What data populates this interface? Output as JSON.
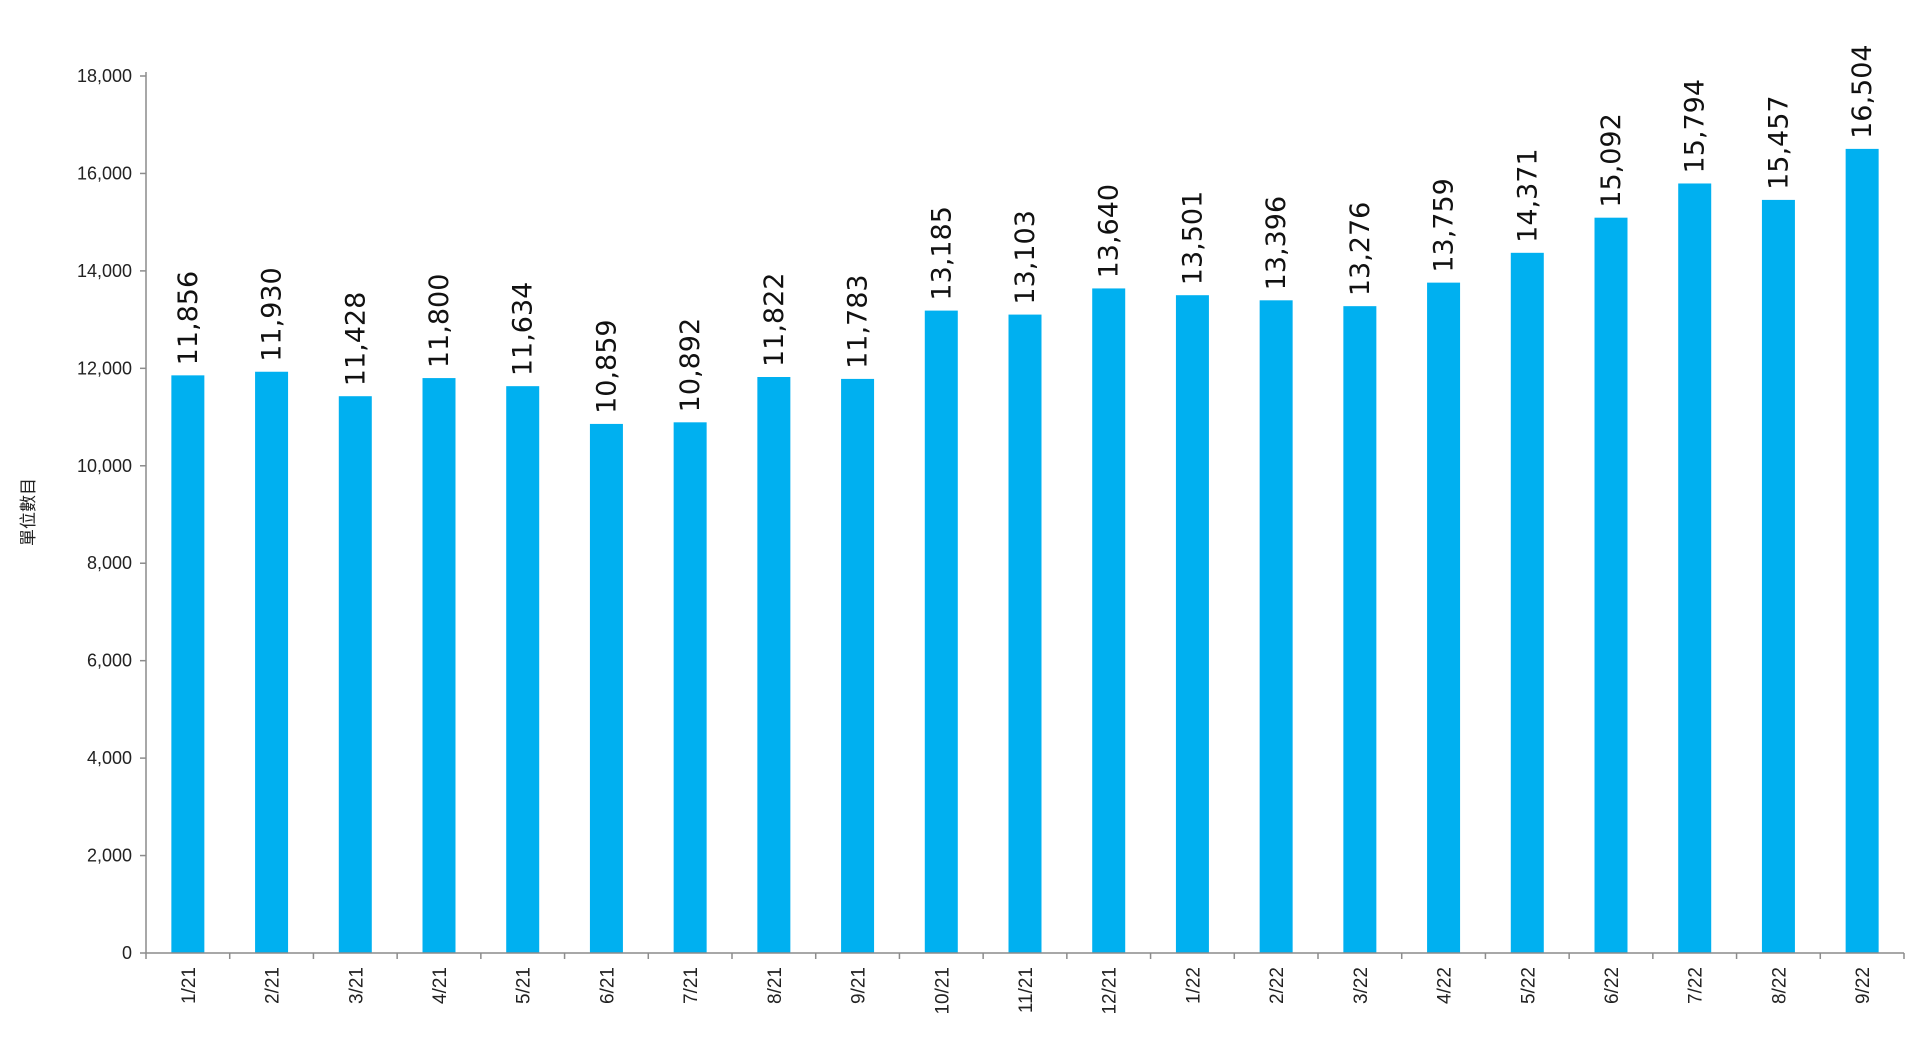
{
  "chart_data": {
    "type": "bar",
    "ylabel": "單位數目",
    "ylim": [
      0,
      18000
    ],
    "yticks": [
      0,
      2000,
      4000,
      6000,
      8000,
      10000,
      12000,
      14000,
      16000,
      18000
    ],
    "ytick_labels": [
      "0",
      "2,000",
      "4,000",
      "6,000",
      "8,000",
      "10,000",
      "12,000",
      "14,000",
      "16,000",
      "18,000"
    ],
    "grid": false,
    "legend": "none",
    "bar_color": "#00B0F0",
    "axis_color": "#8C8C8C",
    "categories": [
      "1/21",
      "2/21",
      "3/21",
      "4/21",
      "5/21",
      "6/21",
      "7/21",
      "8/21",
      "9/21",
      "10/21",
      "11/21",
      "12/21",
      "1/22",
      "2/22",
      "3/22",
      "4/22",
      "5/22",
      "6/22",
      "7/22",
      "8/22",
      "9/22"
    ],
    "values": [
      11856,
      11930,
      11428,
      11800,
      11634,
      10859,
      10892,
      11822,
      11783,
      13185,
      13103,
      13640,
      13501,
      13396,
      13276,
      13759,
      14371,
      15092,
      15794,
      15457,
      16504
    ],
    "data_labels": [
      "11,856",
      "11,930",
      "11,428",
      "11,800",
      "11,634",
      "10,859",
      "10,892",
      "11,822",
      "11,783",
      "13,185",
      "13,103",
      "13,640",
      "13,501",
      "13,396",
      "13,276",
      "13,759",
      "14,371",
      "15,092",
      "15,794",
      "15,457",
      "16,504"
    ]
  }
}
